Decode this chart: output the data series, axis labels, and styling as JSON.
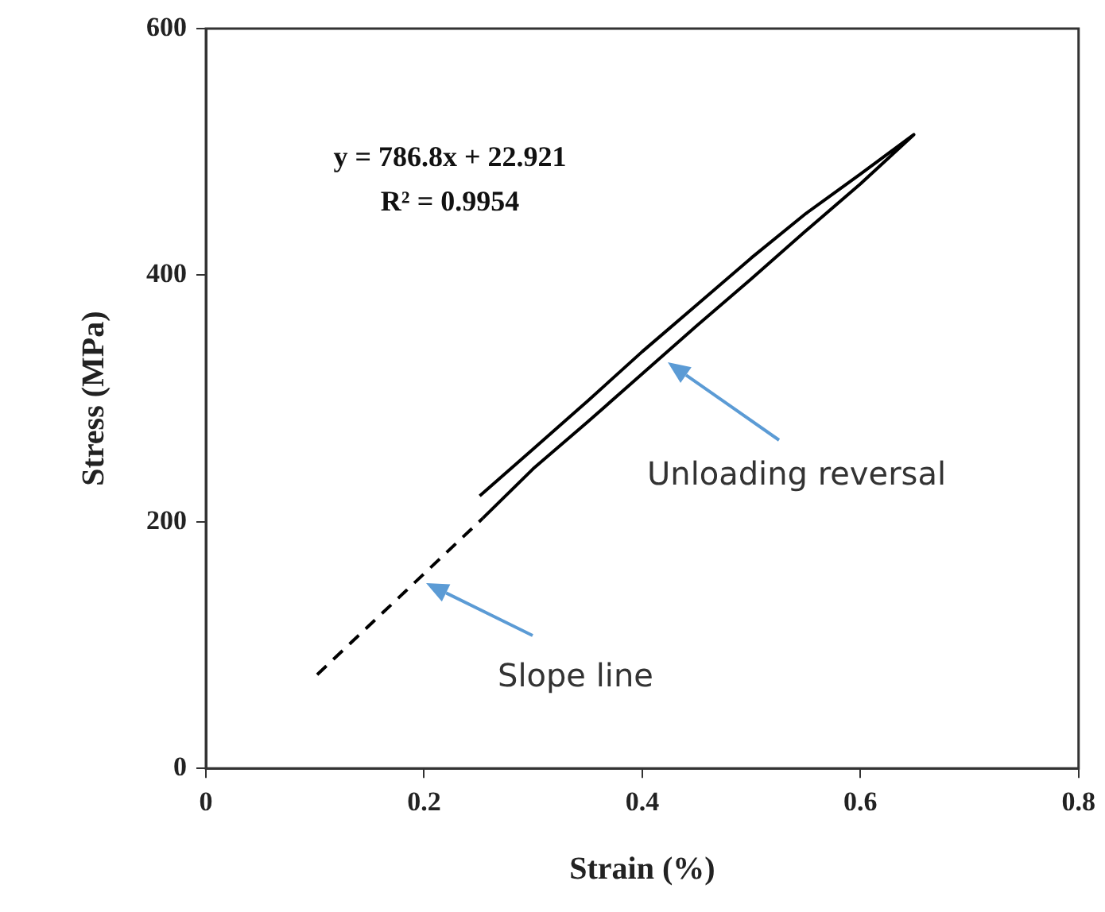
{
  "chart_data": {
    "type": "line",
    "xlabel": "Strain (%)",
    "ylabel": "Stress (MPa)",
    "xlim": [
      0,
      0.8
    ],
    "xticks": [
      0,
      0.2,
      0.4,
      0.6,
      0.8
    ],
    "ylim": [
      0,
      600
    ],
    "yticks": [
      0,
      200,
      400,
      600
    ],
    "grid": false,
    "legend": false,
    "marker": "none",
    "series": [
      {
        "color": "#000000",
        "line_style": "solid",
        "x": [
          0.251,
          0.3,
          0.35,
          0.4,
          0.45,
          0.5,
          0.55,
          0.6,
          0.649,
          0.6,
          0.55,
          0.5,
          0.45,
          0.4,
          0.35,
          0.3,
          0.254
        ],
        "values": [
          221,
          259,
          298,
          338,
          376,
          414,
          450,
          482,
          514,
          474,
          436,
          397,
          359,
          320,
          281,
          243,
          203
        ]
      },
      {
        "color": "#000000",
        "line_style": "dashed",
        "x": [
          0.102,
          0.254
        ],
        "values": [
          76,
          203
        ]
      }
    ],
    "annotations": [
      "y = 786.8x + 22.921",
      "R² = 0.9954",
      "Unloading reversal",
      "Slope line"
    ]
  }
}
